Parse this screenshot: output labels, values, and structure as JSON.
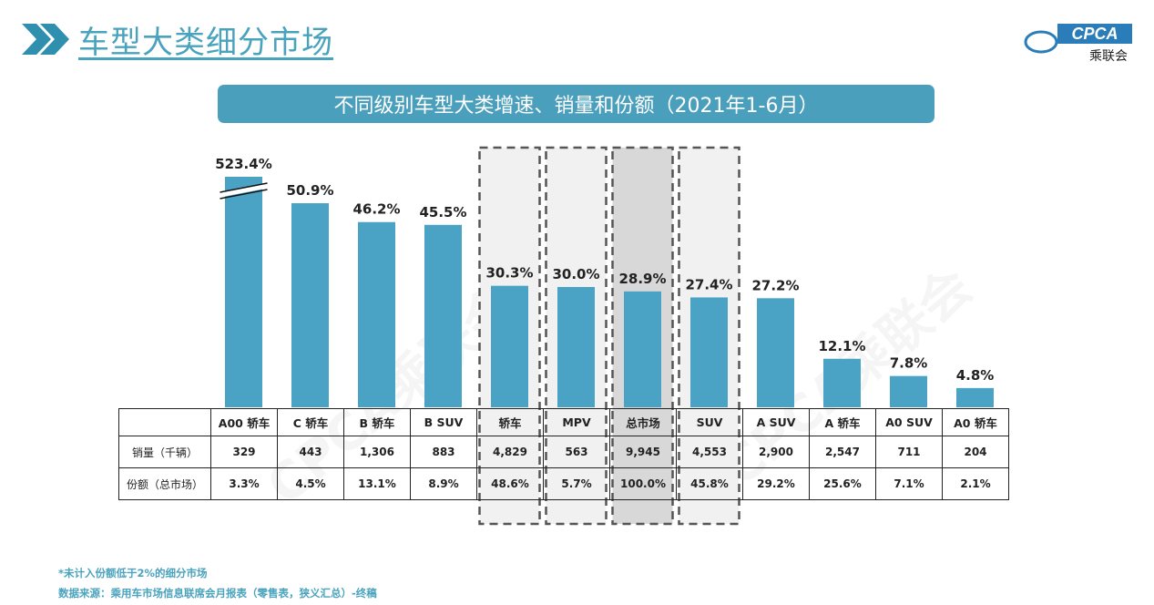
{
  "header": {
    "title": "车型大类细分市场",
    "logo_text": "CPCA",
    "logo_subtext": "乘联会"
  },
  "chart_title": "不同级别车型大类增速、销量和份额（2021年1-6月）",
  "table": {
    "row_labels": [
      "销量（千辆）",
      "份额（总市场）"
    ]
  },
  "chart_data": {
    "type": "bar",
    "title": "不同级别车型大类增速、销量和份额（2021年1-6月）",
    "categories": [
      "A00 轿车",
      "C 轿车",
      "B 轿车",
      "B SUV",
      "轿车",
      "MPV",
      "总市场",
      "SUV",
      "A SUV",
      "A 轿车",
      "A0 SUV",
      "A0 轿车"
    ],
    "growth_labels": [
      "523.4%",
      "50.9%",
      "46.2%",
      "45.5%",
      "30.3%",
      "30.0%",
      "28.9%",
      "27.4%",
      "27.2%",
      "12.1%",
      "7.8%",
      "4.8%"
    ],
    "values": [
      523.4,
      50.9,
      46.2,
      45.5,
      30.3,
      30.0,
      28.9,
      27.4,
      27.2,
      12.1,
      7.8,
      4.8
    ],
    "axis_break": true,
    "sales": [
      "329",
      "443",
      "1,306",
      "883",
      "4,829",
      "563",
      "9,945",
      "4,553",
      "2,900",
      "2,547",
      "711",
      "204"
    ],
    "share": [
      "3.3%",
      "4.5%",
      "13.1%",
      "8.9%",
      "48.6%",
      "5.7%",
      "100.0%",
      "45.8%",
      "29.2%",
      "25.6%",
      "7.1%",
      "2.1%"
    ],
    "highlighted": [
      "轿车",
      "MPV",
      "总市场",
      "SUV"
    ],
    "bar_color": "#4aa3c4"
  },
  "colors": {
    "accent": "#4aa3bd",
    "bar": "#4aa3c4",
    "highlight_box": "#f1f1f1",
    "highlight_box_total": "#d8d8d8"
  },
  "watermark": "CPCA乘联会",
  "footnote": "*未计入份额低于2%的细分市场",
  "source": "数据来源：乘用车市场信息联席会月报表（零售表，狭义汇总）-终稿"
}
